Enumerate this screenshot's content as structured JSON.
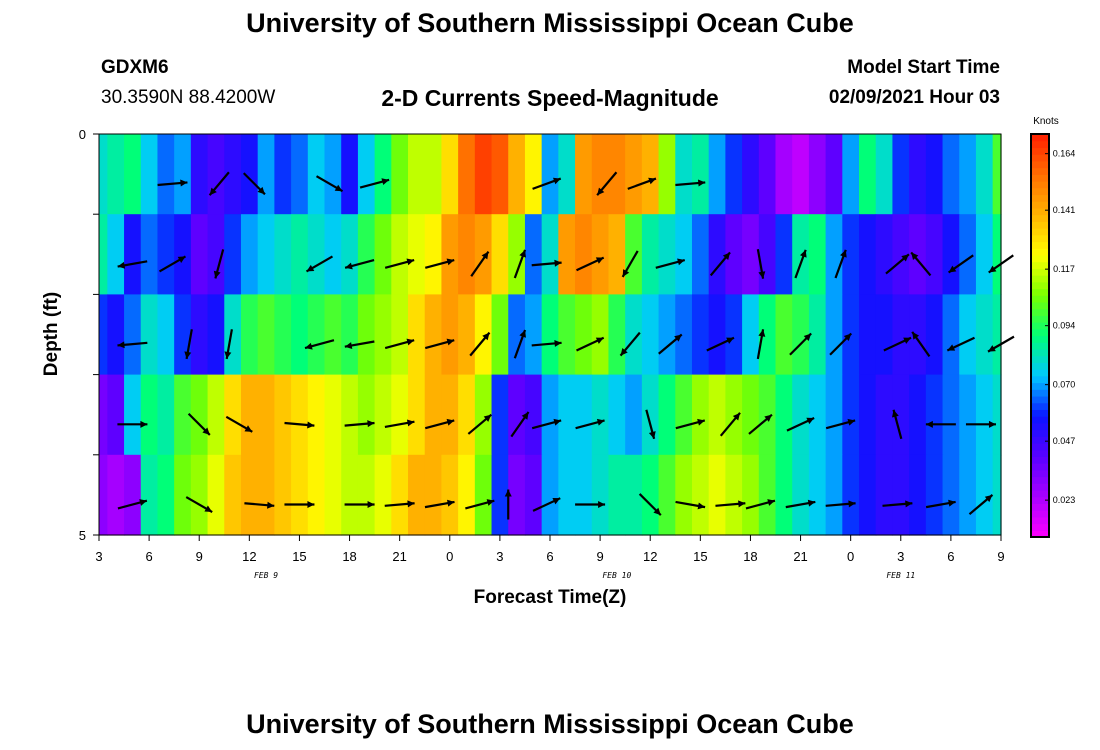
{
  "title_top": "University of Southern Mississippi Ocean Cube",
  "title_bottom": "University of Southern Mississippi Ocean Cube",
  "station": {
    "id": "GDXM6",
    "location": "30.3590N 88.4200W"
  },
  "model_start": {
    "label": "Model Start Time",
    "value": "02/09/2021 Hour 03"
  },
  "colors": {
    "scale": [
      "#ff00ff",
      "#a800ff",
      "#5a00ff",
      "#0a14ff",
      "#00c8ff",
      "#00ff78",
      "#78ff00",
      "#ffff00",
      "#ffb400",
      "#ff6e00",
      "#ff1e00"
    ],
    "arrow": "#000000"
  },
  "chart_data": {
    "type": "heatmap",
    "title": "2-D Currents Speed-Magnitude",
    "xlabel": "Forecast Time(Z)",
    "ylabel": "Depth (ft)",
    "x_hours": [
      3,
      57
    ],
    "x_tick_labels": [
      "3",
      "6",
      "9",
      "12",
      "15",
      "18",
      "21",
      "0",
      "3",
      "6",
      "9",
      "12",
      "15",
      "18",
      "21",
      "0",
      "3",
      "6",
      "9"
    ],
    "date_labels": [
      {
        "hour": 13,
        "text": "FEB 9"
      },
      {
        "hour": 34,
        "text": "FEB 10"
      },
      {
        "hour": 51,
        "text": "FEB 11"
      }
    ],
    "y_range": [
      0,
      5
    ],
    "y_tick_labels": [
      {
        "value": 0,
        "text": "0"
      },
      {
        "value": 1,
        "text": ""
      },
      {
        "value": 2,
        "text": ""
      },
      {
        "value": 3,
        "text": ""
      },
      {
        "value": 4,
        "text": ""
      },
      {
        "value": 5,
        "text": "5"
      }
    ],
    "depth_rows": 5,
    "colorbar": {
      "unit_label": "Knots",
      "min": 0.008,
      "max": 0.172,
      "tick_values": [
        0.023,
        0.047,
        0.07,
        0.094,
        0.117,
        0.141,
        0.164
      ],
      "tick_labels": [
        "0.023",
        "0.047",
        "0.070",
        "0.094",
        "0.117",
        "0.141",
        "0.164"
      ]
    },
    "speed_by_depth_row": [
      {
        "anchor_hours": [
          3,
          4,
          5,
          6,
          7,
          8,
          9,
          10,
          11,
          12,
          13,
          14,
          15,
          16,
          17,
          18,
          19,
          20,
          21,
          22,
          23,
          24,
          25,
          26,
          27,
          28,
          29,
          30,
          31,
          32,
          33,
          34,
          35,
          36,
          37,
          38,
          39,
          40,
          41,
          42,
          43,
          44,
          45,
          46,
          47,
          48,
          49,
          50,
          51,
          52,
          53,
          54,
          55,
          56,
          57
        ],
        "speeds": [
          0.08,
          0.085,
          0.09,
          0.075,
          0.065,
          0.07,
          0.05,
          0.045,
          0.05,
          0.055,
          0.07,
          0.06,
          0.065,
          0.075,
          0.07,
          0.055,
          0.075,
          0.09,
          0.105,
          0.115,
          0.115,
          0.13,
          0.155,
          0.165,
          0.16,
          0.14,
          0.125,
          0.07,
          0.08,
          0.145,
          0.15,
          0.15,
          0.145,
          0.14,
          0.11,
          0.08,
          0.085,
          0.07,
          0.06,
          0.05,
          0.04,
          0.025,
          0.02,
          0.03,
          0.04,
          0.07,
          0.09,
          0.08,
          0.06,
          0.05,
          0.055,
          0.065,
          0.07,
          0.08,
          0.1
        ]
      },
      {
        "anchor_hours": [
          3,
          4,
          5,
          6,
          7,
          8,
          9,
          10,
          11,
          12,
          13,
          14,
          15,
          16,
          17,
          18,
          19,
          20,
          21,
          22,
          23,
          24,
          25,
          26,
          27,
          28,
          29,
          30,
          31,
          32,
          33,
          34,
          35,
          36,
          37,
          38,
          39,
          40,
          41,
          42,
          43,
          44,
          45,
          46,
          47,
          48,
          49,
          50,
          51,
          52,
          53,
          54,
          55,
          56,
          57
        ],
        "speeds": [
          0.085,
          0.075,
          0.055,
          0.065,
          0.06,
          0.055,
          0.04,
          0.045,
          0.06,
          0.07,
          0.075,
          0.08,
          0.085,
          0.08,
          0.075,
          0.08,
          0.095,
          0.105,
          0.115,
          0.12,
          0.125,
          0.145,
          0.15,
          0.145,
          0.13,
          0.11,
          0.065,
          0.08,
          0.145,
          0.15,
          0.145,
          0.14,
          0.1,
          0.085,
          0.08,
          0.075,
          0.065,
          0.05,
          0.04,
          0.035,
          0.045,
          0.06,
          0.085,
          0.09,
          0.07,
          0.06,
          0.055,
          0.05,
          0.045,
          0.04,
          0.045,
          0.055,
          0.065,
          0.075,
          0.09
        ]
      },
      {
        "anchor_hours": [
          3,
          4,
          5,
          6,
          7,
          8,
          9,
          10,
          11,
          12,
          13,
          14,
          15,
          16,
          17,
          18,
          19,
          20,
          21,
          22,
          23,
          24,
          25,
          26,
          27,
          28,
          29,
          30,
          31,
          32,
          33,
          34,
          35,
          36,
          37,
          38,
          39,
          40,
          41,
          42,
          43,
          44,
          45,
          46,
          47,
          48,
          49,
          50,
          51,
          52,
          53,
          54,
          55,
          56,
          57
        ],
        "speeds": [
          0.06,
          0.055,
          0.065,
          0.08,
          0.075,
          0.06,
          0.05,
          0.055,
          0.08,
          0.095,
          0.1,
          0.095,
          0.09,
          0.095,
          0.1,
          0.095,
          0.105,
          0.11,
          0.115,
          0.13,
          0.14,
          0.145,
          0.14,
          0.125,
          0.105,
          0.065,
          0.07,
          0.09,
          0.1,
          0.105,
          0.11,
          0.095,
          0.08,
          0.075,
          0.07,
          0.065,
          0.06,
          0.055,
          0.06,
          0.075,
          0.09,
          0.1,
          0.095,
          0.085,
          0.07,
          0.06,
          0.055,
          0.055,
          0.05,
          0.05,
          0.055,
          0.065,
          0.075,
          0.08,
          0.085
        ]
      },
      {
        "anchor_hours": [
          3,
          4,
          5,
          6,
          7,
          8,
          9,
          10,
          11,
          12,
          13,
          14,
          15,
          16,
          17,
          18,
          19,
          20,
          21,
          22,
          23,
          24,
          25,
          26,
          27,
          28,
          29,
          30,
          31,
          32,
          33,
          34,
          35,
          36,
          37,
          38,
          39,
          40,
          41,
          42,
          43,
          44,
          45,
          46,
          47,
          48,
          49,
          50,
          51,
          52,
          53,
          54,
          55,
          56,
          57
        ],
        "speeds": [
          0.035,
          0.04,
          0.075,
          0.09,
          0.085,
          0.1,
          0.105,
          0.115,
          0.13,
          0.14,
          0.14,
          0.135,
          0.13,
          0.125,
          0.12,
          0.115,
          0.11,
          0.115,
          0.12,
          0.13,
          0.14,
          0.14,
          0.13,
          0.11,
          0.06,
          0.04,
          0.045,
          0.07,
          0.075,
          0.075,
          0.08,
          0.075,
          0.07,
          0.08,
          0.09,
          0.1,
          0.11,
          0.115,
          0.11,
          0.105,
          0.1,
          0.09,
          0.08,
          0.075,
          0.07,
          0.06,
          0.055,
          0.05,
          0.05,
          0.055,
          0.06,
          0.065,
          0.07,
          0.075,
          0.08
        ]
      },
      {
        "anchor_hours": [
          3,
          4,
          5,
          6,
          7,
          8,
          9,
          10,
          11,
          12,
          13,
          14,
          15,
          16,
          17,
          18,
          19,
          20,
          21,
          22,
          23,
          24,
          25,
          26,
          27,
          28,
          29,
          30,
          31,
          32,
          33,
          34,
          35,
          36,
          37,
          38,
          39,
          40,
          41,
          42,
          43,
          44,
          45,
          46,
          47,
          48,
          49,
          50,
          51,
          52,
          53,
          54,
          55,
          56,
          57
        ],
        "speeds": [
          0.03,
          0.025,
          0.03,
          0.085,
          0.09,
          0.105,
          0.11,
          0.12,
          0.135,
          0.14,
          0.14,
          0.135,
          0.13,
          0.125,
          0.12,
          0.115,
          0.115,
          0.12,
          0.13,
          0.14,
          0.14,
          0.135,
          0.125,
          0.105,
          0.06,
          0.035,
          0.04,
          0.07,
          0.075,
          0.075,
          0.08,
          0.085,
          0.085,
          0.09,
          0.1,
          0.11,
          0.115,
          0.12,
          0.115,
          0.11,
          0.1,
          0.09,
          0.08,
          0.075,
          0.07,
          0.06,
          0.055,
          0.05,
          0.05,
          0.055,
          0.06,
          0.065,
          0.07,
          0.075,
          0.08
        ]
      }
    ],
    "arrows": [
      {
        "row": 0,
        "hours": [
          7.4,
          10.2,
          12.3,
          16.8,
          19.5,
          29.8,
          33.4,
          35.5,
          38.4
        ],
        "directions_deg": [
          5,
          230,
          315,
          330,
          15,
          20,
          230,
          20,
          5
        ]
      },
      {
        "row": 1,
        "hours": [
          5,
          7.4,
          10.2,
          16.2,
          18.6,
          21,
          23.4,
          25.8,
          28.2,
          29.8,
          32.4,
          34.8,
          37.2,
          40.2,
          42.6,
          45,
          47.4,
          50.8,
          52.2,
          54.6,
          57
        ],
        "directions_deg": [
          190,
          30,
          255,
          210,
          195,
          15,
          15,
          55,
          70,
          5,
          25,
          240,
          15,
          50,
          280,
          70,
          70,
          40,
          130,
          215,
          215
        ]
      },
      {
        "row": 2,
        "hours": [
          5,
          8.4,
          10.8,
          16.2,
          18.6,
          21,
          23.4,
          25.8,
          28.2,
          29.8,
          32.4,
          34.8,
          37.2,
          40.2,
          42.6,
          45,
          47.4,
          50.8,
          52.2,
          54.6,
          57
        ],
        "directions_deg": [
          185,
          260,
          260,
          195,
          190,
          15,
          15,
          50,
          70,
          5,
          25,
          230,
          40,
          25,
          80,
          45,
          45,
          25,
          125,
          205,
          210
        ]
      },
      {
        "row": 3,
        "hours": [
          5,
          9,
          11.4,
          15,
          18.6,
          21,
          23.4,
          25.8,
          28.2,
          29.8,
          32.4,
          36,
          38.4,
          40.8,
          42.6,
          45,
          47.4,
          50.8,
          53.4,
          55.8
        ],
        "directions_deg": [
          0,
          315,
          330,
          355,
          5,
          10,
          15,
          40,
          55,
          15,
          15,
          285,
          15,
          50,
          40,
          25,
          15,
          105,
          180,
          0
        ]
      },
      {
        "row": 4,
        "hours": [
          5,
          9,
          12.6,
          15,
          18.6,
          21,
          23.4,
          25.8,
          27.5,
          29.8,
          32.4,
          36,
          38.4,
          40.8,
          42.6,
          45,
          47.4,
          50.8,
          53.4,
          55.8
        ],
        "directions_deg": [
          15,
          330,
          355,
          0,
          0,
          5,
          10,
          15,
          90,
          25,
          0,
          315,
          350,
          5,
          15,
          10,
          5,
          5,
          10,
          40
        ]
      }
    ]
  }
}
